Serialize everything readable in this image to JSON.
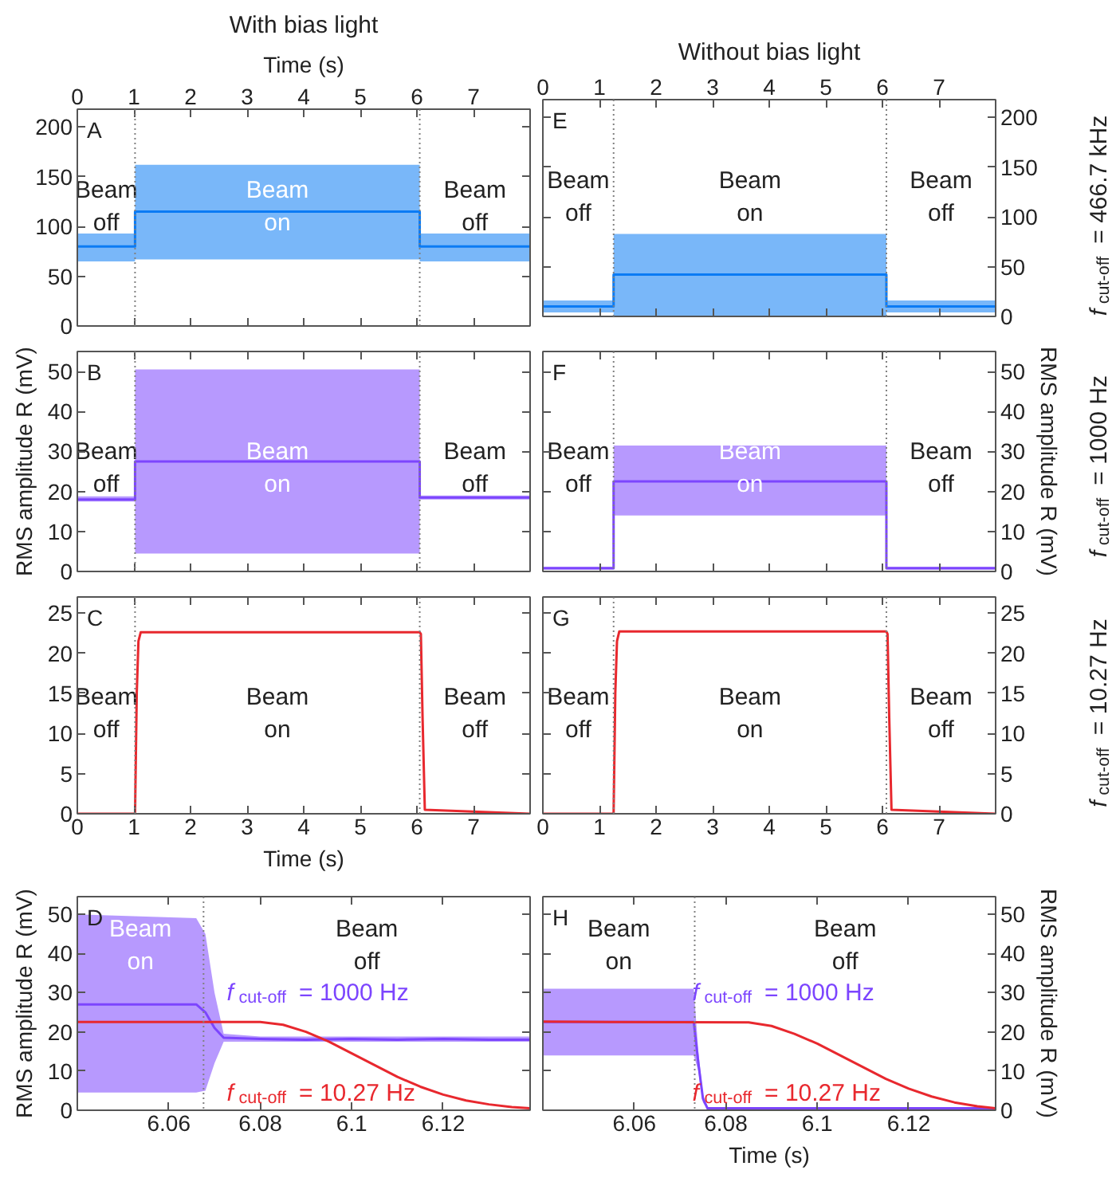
{
  "chart_data": [
    {
      "type": "line",
      "title": "With bias light",
      "xlabel": "Time (s)",
      "xlim": [
        0,
        8
      ],
      "xticks": [
        0,
        1,
        2,
        3,
        4,
        5,
        6,
        7
      ],
      "ylim": [
        0,
        218
      ],
      "yticks": [
        0,
        50,
        100,
        150,
        200
      ],
      "series": [
        {
          "color": "#0b7bf4",
          "x": [
            0,
            1.02,
            1.02,
            6.05,
            6.05,
            8
          ],
          "values": [
            80,
            80,
            115,
            115,
            80,
            80
          ],
          "lower": [
            65,
            65,
            67,
            67,
            65,
            65
          ],
          "upper": [
            93,
            93,
            162,
            162,
            93,
            93
          ]
        }
      ],
      "ref_lines": [
        {
          "axis": "x",
          "value": 1.02,
          "color": "#808080",
          "line_style": "dotted"
        },
        {
          "axis": "x",
          "value": 6.05,
          "color": "#808080",
          "line_style": "dotted"
        }
      ],
      "annotations": [
        "A",
        "Beam\noff",
        "Beam\non",
        "Beam\noff"
      ]
    },
    {
      "type": "line",
      "title": "Without bias light",
      "xlim": [
        0,
        8
      ],
      "xticks": [
        0,
        1,
        2,
        3,
        4,
        5,
        6,
        7
      ],
      "ylim": [
        0,
        218
      ],
      "yticks": [
        0,
        50,
        100,
        150,
        200
      ],
      "series": [
        {
          "color": "#0b7bf4",
          "x": [
            0,
            1.25,
            1.25,
            6.07,
            6.07,
            8
          ],
          "values": [
            10,
            10,
            42,
            42,
            10,
            10
          ],
          "lower": [
            4,
            4,
            0,
            0,
            4,
            4
          ],
          "upper": [
            16,
            16,
            83,
            83,
            16,
            16
          ]
        }
      ],
      "ref_lines": [
        {
          "axis": "x",
          "value": 1.25,
          "color": "#808080",
          "line_style": "dotted"
        },
        {
          "axis": "x",
          "value": 6.07,
          "color": "#808080",
          "line_style": "dotted"
        }
      ],
      "annotations": [
        "E",
        "Beam\noff",
        "Beam\non",
        "Beam\noff",
        "f$_{cut-off}$ = 466.7 kHz"
      ]
    },
    {
      "type": "line",
      "xlim": [
        0,
        8
      ],
      "xticks": [
        0,
        1,
        2,
        3,
        4,
        5,
        6,
        7
      ],
      "ylim": [
        0,
        55
      ],
      "yticks": [
        0,
        10,
        20,
        30,
        40,
        50
      ],
      "ylabel": "RMS amplitude R (mV)",
      "tick_labels": "y",
      "series": [
        {
          "color": "#7c45fe",
          "x": [
            0,
            1.02,
            1.02,
            6.05,
            6.05,
            8
          ],
          "values": [
            18,
            18,
            27.5,
            27.5,
            18.5,
            18.5
          ],
          "lower": [
            17.5,
            17.5,
            4.5,
            4.5,
            18,
            18
          ],
          "upper": [
            18.8,
            18.8,
            50.5,
            50.5,
            19,
            19
          ]
        }
      ],
      "ref_lines": [
        {
          "axis": "x",
          "value": 1.02,
          "color": "#808080",
          "line_style": "dotted"
        },
        {
          "axis": "x",
          "value": 6.05,
          "color": "#808080",
          "line_style": "dotted"
        }
      ],
      "annotations": [
        "B",
        "Beam\noff",
        "Beam\non",
        "Beam\noff"
      ]
    },
    {
      "type": "line",
      "xlim": [
        0,
        8
      ],
      "xticks": [
        0,
        1,
        2,
        3,
        4,
        5,
        6,
        7
      ],
      "ylim": [
        0,
        55
      ],
      "yticks": [
        0,
        10,
        20,
        30,
        40,
        50
      ],
      "ylabel": "RMS amplitude R (mV)",
      "tick_labels": "y",
      "series": [
        {
          "color": "#7c45fe",
          "x": [
            0,
            1.25,
            1.25,
            6.07,
            6.07,
            8
          ],
          "values": [
            0.8,
            0.8,
            22.5,
            22.5,
            0.8,
            0.8
          ],
          "lower": [
            0.5,
            0.5,
            14,
            14,
            0.5,
            0.5
          ],
          "upper": [
            1.2,
            1.2,
            31.5,
            31.5,
            1.2,
            1.2
          ]
        }
      ],
      "ref_lines": [
        {
          "axis": "x",
          "value": 1.25,
          "color": "#808080",
          "line_style": "dotted"
        },
        {
          "axis": "x",
          "value": 6.07,
          "color": "#808080",
          "line_style": "dotted"
        }
      ],
      "annotations": [
        "F",
        "Beam\noff",
        "Beam\non",
        "Beam\noff",
        "f$_{cut-off}$ = 1000 Hz"
      ]
    },
    {
      "type": "line",
      "xlim": [
        0,
        8
      ],
      "xticks": [
        0,
        1,
        2,
        3,
        4,
        5,
        6,
        7
      ],
      "xlabel": "Time (s)",
      "ylim": [
        0,
        27
      ],
      "yticks": [
        0,
        5,
        10,
        15,
        20,
        25
      ],
      "series": [
        {
          "color": "#e8282e",
          "x": [
            0,
            1.02,
            1.05,
            1.08,
            1.12,
            6.05,
            6.07,
            6.1,
            6.14,
            8
          ],
          "values": [
            0,
            0,
            15,
            21.5,
            22.6,
            22.6,
            22.4,
            12,
            0.5,
            0
          ]
        }
      ],
      "ref_lines": [
        {
          "axis": "x",
          "value": 1.02,
          "color": "#808080",
          "line_style": "dotted"
        },
        {
          "axis": "x",
          "value": 6.05,
          "color": "#808080",
          "line_style": "dotted"
        }
      ],
      "annotations": [
        "C",
        "Beam\noff",
        "Beam\non",
        "Beam\noff"
      ]
    },
    {
      "type": "line",
      "xlim": [
        0,
        8
      ],
      "xticks": [
        0,
        1,
        2,
        3,
        4,
        5,
        6,
        7
      ],
      "ylim": [
        0,
        27
      ],
      "yticks": [
        0,
        5,
        10,
        15,
        20,
        25
      ],
      "series": [
        {
          "color": "#e8282e",
          "x": [
            0,
            1.25,
            1.28,
            1.31,
            1.35,
            6.07,
            6.09,
            6.12,
            6.16,
            8
          ],
          "values": [
            0,
            0,
            15,
            21.5,
            22.7,
            22.7,
            22.4,
            12,
            0.5,
            0
          ]
        }
      ],
      "ref_lines": [
        {
          "axis": "x",
          "value": 1.25,
          "color": "#808080",
          "line_style": "dotted"
        },
        {
          "axis": "x",
          "value": 6.07,
          "color": "#808080",
          "line_style": "dotted"
        }
      ],
      "annotations": [
        "G",
        "Beam\noff",
        "Beam\non",
        "Beam\noff",
        "f$_{cut-off}$ = 10.27 Hz"
      ]
    },
    {
      "type": "line",
      "xlim": [
        6.04,
        6.139
      ],
      "xticks": [
        6.06,
        6.08,
        6.1,
        6.12
      ],
      "ylim": [
        0,
        54.5
      ],
      "yticks": [
        0,
        10,
        20,
        30,
        40,
        50
      ],
      "ylabel": "RMS amplitude R (mV)",
      "series": [
        {
          "name": "f$_{cut-off}$ = 1000 Hz",
          "color": "#7c45fe",
          "x": [
            6.04,
            6.066,
            6.068,
            6.07,
            6.072,
            6.08,
            6.09,
            6.1,
            6.11,
            6.12,
            6.13,
            6.139
          ],
          "values": [
            27,
            27,
            25,
            21,
            18.5,
            18.2,
            18,
            18.2,
            18,
            18.2,
            18,
            18
          ],
          "lower": [
            4.5,
            4.5,
            5,
            12,
            17.5,
            17.5,
            17.5,
            17.5,
            17.5,
            17.5,
            17.5,
            17.5
          ],
          "upper": [
            50,
            49,
            45,
            30,
            19.5,
            18.8,
            18.8,
            18.8,
            18.8,
            18.8,
            18.8,
            18.8
          ]
        },
        {
          "name": "f$_{cut-off}$ = 10.27 Hz",
          "color": "#e8282e",
          "x": [
            6.04,
            6.08,
            6.085,
            6.09,
            6.095,
            6.1,
            6.105,
            6.11,
            6.115,
            6.12,
            6.125,
            6.13,
            6.135,
            6.139
          ],
          "values": [
            22.5,
            22.5,
            21.8,
            20,
            17.5,
            14.5,
            11.5,
            8.5,
            6,
            4,
            2.5,
            1.5,
            0.8,
            0.5
          ]
        }
      ],
      "ref_lines": [
        {
          "axis": "x",
          "value": 6.0676,
          "color": "#808080",
          "line_style": "dotted"
        }
      ],
      "annotations": [
        "D",
        "Beam\non",
        "Beam\noff"
      ]
    },
    {
      "type": "line",
      "xlim": [
        6.04,
        6.139
      ],
      "xticks": [
        6.06,
        6.08,
        6.1,
        6.12
      ],
      "xlabel": "Time (s)",
      "ylim": [
        0,
        54.5
      ],
      "yticks": [
        0,
        10,
        20,
        30,
        40,
        50
      ],
      "ylabel": "RMS amplitude R (mV)",
      "series": [
        {
          "name": "f$_{cut-off}$ = 1000 Hz",
          "color": "#7c45fe",
          "x": [
            6.04,
            6.073,
            6.074,
            6.075,
            6.076,
            6.08,
            6.1,
            6.12,
            6.139
          ],
          "values": [
            22.5,
            22.5,
            12,
            3,
            0.5,
            0.5,
            0.5,
            0.5,
            0.5
          ],
          "lower": [
            14,
            14,
            10,
            2,
            0.3,
            0.3,
            0.3,
            0.3,
            0.3
          ],
          "upper": [
            31,
            31,
            15,
            4,
            0.8,
            0.8,
            0.8,
            0.8,
            0.8
          ]
        },
        {
          "name": "f$_{cut-off}$ = 10.27 Hz",
          "color": "#e8282e",
          "x": [
            6.04,
            6.085,
            6.09,
            6.095,
            6.1,
            6.105,
            6.11,
            6.115,
            6.12,
            6.125,
            6.13,
            6.135,
            6.139
          ],
          "values": [
            22.6,
            22.4,
            21.5,
            19.5,
            17,
            14,
            11,
            8,
            5.5,
            3.5,
            2,
            1,
            0.5
          ]
        }
      ],
      "ref_lines": [
        {
          "axis": "x",
          "value": 6.0732,
          "color": "#808080",
          "line_style": "dotted"
        }
      ],
      "annotations": [
        "H",
        "Beam\non",
        "Beam\noff"
      ]
    }
  ]
}
